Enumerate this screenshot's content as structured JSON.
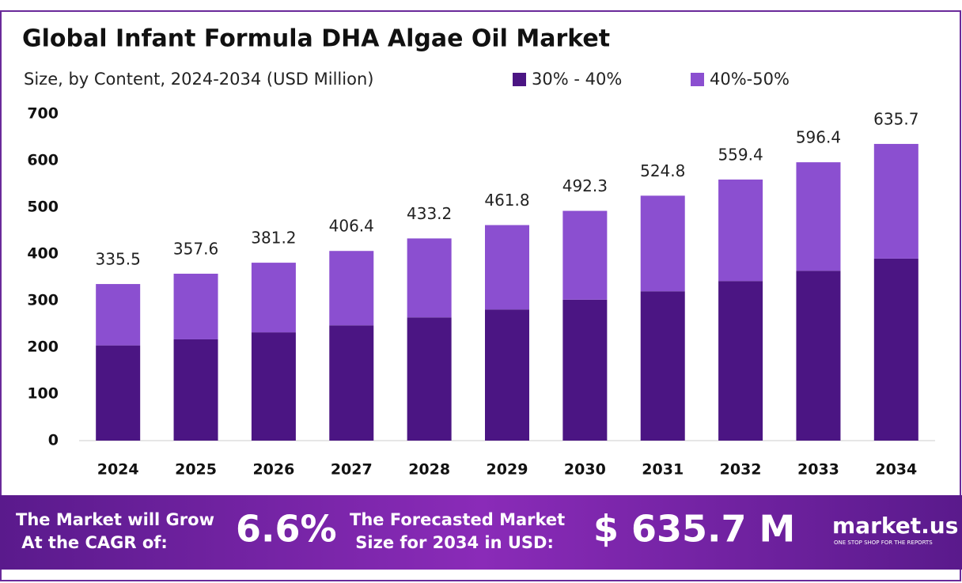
{
  "chart_data": {
    "type": "stacked_bar",
    "title": "Global Infant Formula DHA Algae Oil Market",
    "subtitle": "Size, by Content, 2024-2034 (USD Million)",
    "categories": [
      "2024",
      "2025",
      "2026",
      "2027",
      "2028",
      "2029",
      "2030",
      "2031",
      "2032",
      "2033",
      "2034"
    ],
    "series": [
      {
        "name": "30% - 40%",
        "color": "#4b1583",
        "values": [
          204,
          217,
          232,
          247,
          264,
          281,
          302,
          320,
          342,
          364,
          390
        ]
      },
      {
        "name": "40%-50%",
        "color": "#8b4fd0",
        "values": [
          131.5,
          140.6,
          149.2,
          159.4,
          169.2,
          180.8,
          190.3,
          204.8,
          217.4,
          232.4,
          245.7
        ]
      }
    ],
    "totals": [
      335.5,
      357.6,
      381.2,
      406.4,
      433.2,
      461.8,
      492.3,
      524.8,
      559.4,
      596.4,
      635.7
    ],
    "ylim": [
      0,
      700
    ],
    "yticks": [
      0,
      100,
      200,
      300,
      400,
      500,
      600,
      700
    ],
    "grid": false
  },
  "footer": {
    "cagr_text": "The Market will Grow At the CAGR of:",
    "cagr_value": "6.6%",
    "forecast_text": "The Forecasted Market Size for 2034 in USD:",
    "forecast_value": "$ 635.7 M",
    "brand": "market.us",
    "tagline": "ONE STOP SHOP FOR THE REPORTS"
  }
}
